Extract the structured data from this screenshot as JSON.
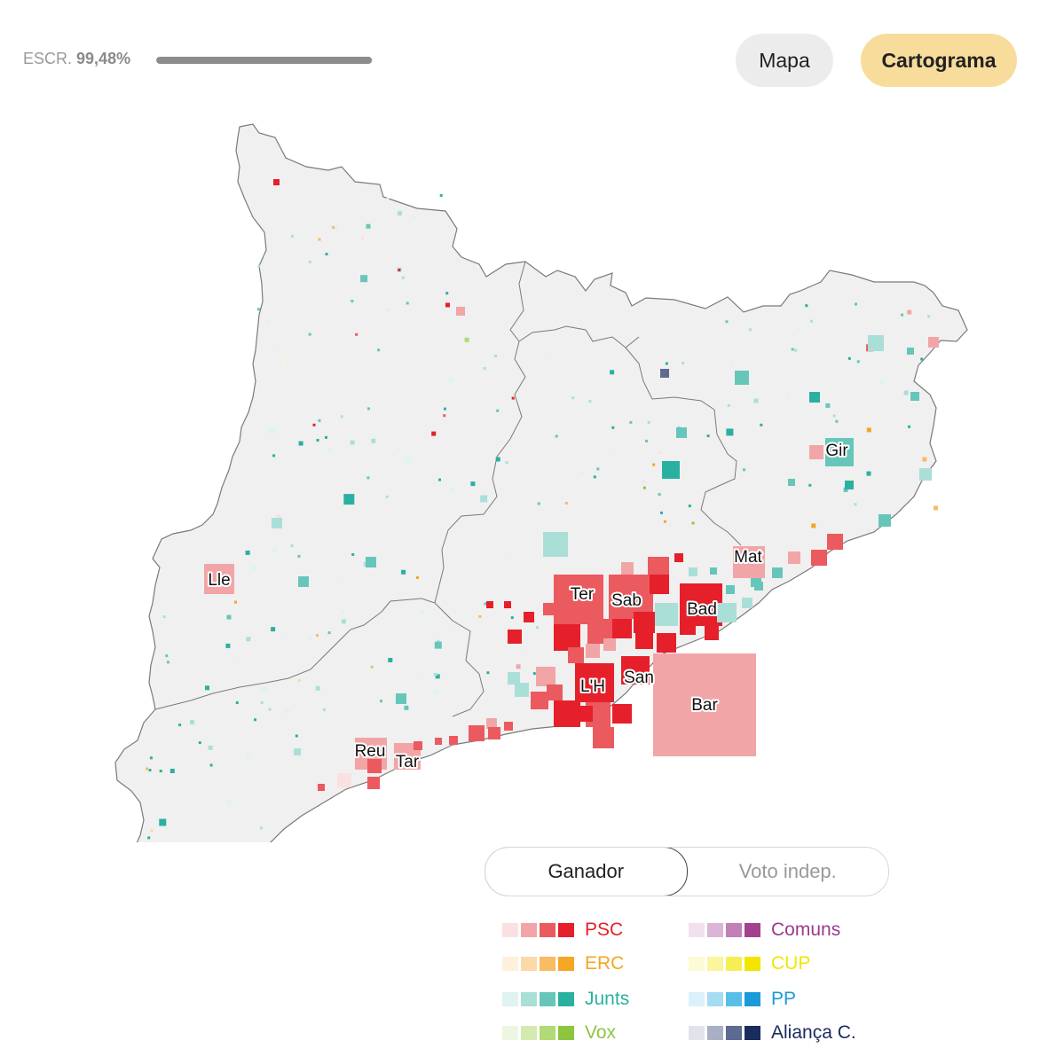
{
  "header": {
    "escr_label": "ESCR.",
    "escr_value": "99,48%",
    "progress_fraction": 0.9948,
    "btn_mapa": "Mapa",
    "btn_cartograma": "Cartograma"
  },
  "map": {
    "labels": [
      "Lle",
      "Gir",
      "Mat",
      "Ter",
      "Sab",
      "Bad",
      "San",
      "L'H",
      "Bar",
      "Reu",
      "Tar"
    ],
    "colors": {
      "land": "#f0f0f0",
      "border": "#7a7a7a"
    }
  },
  "toggle": {
    "option_active": "Ganador",
    "option_inactive": "Voto indep."
  },
  "legend": [
    {
      "name": "PSC",
      "color": "#e5202a",
      "shades": [
        "#fbe0e1",
        "#f2a5a7",
        "#ea5a5f",
        "#e5202a"
      ]
    },
    {
      "name": "Comuns",
      "color": "#9b3a8e",
      "shades": [
        "#f2e0ee",
        "#dcb4d6",
        "#c27fb8",
        "#a3418f"
      ]
    },
    {
      "name": "ERC",
      "color": "#f5a623",
      "shades": [
        "#fdf0dc",
        "#fcd9a6",
        "#f9bb63",
        "#f5a623"
      ]
    },
    {
      "name": "CUP",
      "color": "#f2e500",
      "shades": [
        "#fdfbd6",
        "#fbf59b",
        "#f7ee55",
        "#f2e500"
      ]
    },
    {
      "name": "Junts",
      "color": "#2ab0a0",
      "shades": [
        "#dff3f0",
        "#aadfd8",
        "#66c6b9",
        "#2ab0a0"
      ]
    },
    {
      "name": "PP",
      "color": "#1a9ad6",
      "shades": [
        "#dcf0fa",
        "#a5dcf2",
        "#58bde8",
        "#1a9ad6"
      ]
    },
    {
      "name": "Vox",
      "color": "#8cc63f",
      "shades": [
        "#eef6e1",
        "#d3eab1",
        "#b2da75",
        "#8cc63f"
      ]
    },
    {
      "name": "Aliança C.",
      "color": "#1a2b5e",
      "shades": [
        "#e2e4ec",
        "#a9b0c6",
        "#5d6a91",
        "#1a2b5e"
      ]
    }
  ]
}
